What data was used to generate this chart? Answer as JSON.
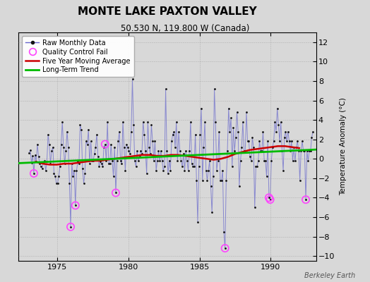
{
  "title": "MONTE LAKE PAXTON VALLEY",
  "subtitle": "50.530 N, 119.800 W (Canada)",
  "ylabel": "Temperature Anomaly (°C)",
  "credit": "Berkeley Earth",
  "xlim": [
    1972.3,
    1993.2
  ],
  "ylim": [
    -10.5,
    13.0
  ],
  "yticks": [
    -10,
    -8,
    -6,
    -4,
    -2,
    0,
    2,
    4,
    6,
    8,
    10,
    12
  ],
  "xticks": [
    1975,
    1980,
    1985,
    1990
  ],
  "bg_color": "#d8d8d8",
  "plot_bg_color": "#d8d8d8",
  "line_color": "#6666cc",
  "dot_color": "#111111",
  "ma_color": "#cc0000",
  "trend_color": "#00bb00",
  "qc_color": "#ff44ff",
  "raw_monthly": [
    [
      1973.042,
      0.6
    ],
    [
      1973.125,
      0.9
    ],
    [
      1973.208,
      -0.4
    ],
    [
      1973.292,
      0.3
    ],
    [
      1973.375,
      -1.5
    ],
    [
      1973.458,
      0.4
    ],
    [
      1973.542,
      -0.3
    ],
    [
      1973.625,
      1.5
    ],
    [
      1973.708,
      0.2
    ],
    [
      1973.792,
      -0.5
    ],
    [
      1973.875,
      -0.8
    ],
    [
      1973.958,
      -1.0
    ],
    [
      1974.042,
      -0.4
    ],
    [
      1974.125,
      -0.2
    ],
    [
      1974.208,
      -1.2
    ],
    [
      1974.292,
      -0.3
    ],
    [
      1974.375,
      2.5
    ],
    [
      1974.458,
      1.5
    ],
    [
      1974.542,
      -0.5
    ],
    [
      1974.625,
      0.8
    ],
    [
      1974.708,
      1.2
    ],
    [
      1974.792,
      -1.5
    ],
    [
      1974.875,
      -1.8
    ],
    [
      1974.958,
      -2.5
    ],
    [
      1975.042,
      -2.5
    ],
    [
      1975.125,
      -1.8
    ],
    [
      1975.208,
      -0.8
    ],
    [
      1975.292,
      1.5
    ],
    [
      1975.375,
      3.8
    ],
    [
      1975.458,
      1.2
    ],
    [
      1975.542,
      -0.5
    ],
    [
      1975.625,
      0.8
    ],
    [
      1975.708,
      2.8
    ],
    [
      1975.792,
      1.2
    ],
    [
      1975.875,
      -2.5
    ],
    [
      1975.958,
      -7.0
    ],
    [
      1976.042,
      -0.5
    ],
    [
      1976.125,
      -1.8
    ],
    [
      1976.208,
      -1.2
    ],
    [
      1976.292,
      -4.8
    ],
    [
      1976.375,
      -1.2
    ],
    [
      1976.458,
      -0.3
    ],
    [
      1976.542,
      -0.5
    ],
    [
      1976.625,
      3.5
    ],
    [
      1976.708,
      3.0
    ],
    [
      1976.792,
      -1.0
    ],
    [
      1976.875,
      -2.5
    ],
    [
      1976.958,
      -1.5
    ],
    [
      1977.042,
      1.8
    ],
    [
      1977.125,
      1.5
    ],
    [
      1977.208,
      3.0
    ],
    [
      1977.292,
      -0.5
    ],
    [
      1977.375,
      1.8
    ],
    [
      1977.458,
      -0.2
    ],
    [
      1977.542,
      -0.2
    ],
    [
      1977.625,
      0.5
    ],
    [
      1977.708,
      1.2
    ],
    [
      1977.792,
      2.5
    ],
    [
      1977.875,
      0.2
    ],
    [
      1977.958,
      -0.8
    ],
    [
      1978.042,
      -0.3
    ],
    [
      1978.125,
      -0.5
    ],
    [
      1978.208,
      -0.8
    ],
    [
      1978.292,
      1.2
    ],
    [
      1978.375,
      1.5
    ],
    [
      1978.458,
      -0.2
    ],
    [
      1978.542,
      3.8
    ],
    [
      1978.625,
      -0.5
    ],
    [
      1978.708,
      -0.5
    ],
    [
      1978.792,
      1.5
    ],
    [
      1978.875,
      -0.2
    ],
    [
      1978.958,
      -1.8
    ],
    [
      1979.042,
      1.2
    ],
    [
      1979.125,
      -3.5
    ],
    [
      1979.208,
      -0.2
    ],
    [
      1979.292,
      1.8
    ],
    [
      1979.375,
      2.8
    ],
    [
      1979.458,
      -0.2
    ],
    [
      1979.542,
      -0.5
    ],
    [
      1979.625,
      3.8
    ],
    [
      1979.708,
      1.2
    ],
    [
      1979.792,
      -1.2
    ],
    [
      1979.875,
      1.5
    ],
    [
      1979.958,
      1.2
    ],
    [
      1980.042,
      0.8
    ],
    [
      1980.125,
      0.5
    ],
    [
      1980.208,
      2.8
    ],
    [
      1980.292,
      8.2
    ],
    [
      1980.375,
      3.5
    ],
    [
      1980.458,
      -0.2
    ],
    [
      1980.542,
      -0.8
    ],
    [
      1980.625,
      0.8
    ],
    [
      1980.708,
      -0.2
    ],
    [
      1980.792,
      0.2
    ],
    [
      1980.875,
      0.8
    ],
    [
      1980.958,
      0.5
    ],
    [
      1981.042,
      3.8
    ],
    [
      1981.125,
      2.5
    ],
    [
      1981.208,
      0.8
    ],
    [
      1981.292,
      -1.5
    ],
    [
      1981.375,
      3.8
    ],
    [
      1981.458,
      1.2
    ],
    [
      1981.542,
      0.5
    ],
    [
      1981.625,
      3.5
    ],
    [
      1981.708,
      1.8
    ],
    [
      1981.792,
      -0.2
    ],
    [
      1981.875,
      1.8
    ],
    [
      1981.958,
      -1.2
    ],
    [
      1982.042,
      -0.2
    ],
    [
      1982.125,
      0.8
    ],
    [
      1982.208,
      -0.2
    ],
    [
      1982.292,
      0.8
    ],
    [
      1982.375,
      -0.2
    ],
    [
      1982.458,
      -1.2
    ],
    [
      1982.542,
      -0.8
    ],
    [
      1982.625,
      7.2
    ],
    [
      1982.708,
      0.8
    ],
    [
      1982.792,
      -1.5
    ],
    [
      1982.875,
      -0.2
    ],
    [
      1982.958,
      -1.2
    ],
    [
      1983.042,
      1.8
    ],
    [
      1983.125,
      2.5
    ],
    [
      1983.208,
      2.8
    ],
    [
      1983.292,
      1.2
    ],
    [
      1983.375,
      3.8
    ],
    [
      1983.458,
      -0.2
    ],
    [
      1983.542,
      2.8
    ],
    [
      1983.625,
      0.8
    ],
    [
      1983.708,
      -0.2
    ],
    [
      1983.792,
      -0.8
    ],
    [
      1983.875,
      0.5
    ],
    [
      1983.958,
      -1.2
    ],
    [
      1984.042,
      0.8
    ],
    [
      1984.125,
      -0.2
    ],
    [
      1984.208,
      -1.2
    ],
    [
      1984.292,
      0.8
    ],
    [
      1984.375,
      3.8
    ],
    [
      1984.458,
      -0.5
    ],
    [
      1984.542,
      -0.8
    ],
    [
      1984.625,
      -0.8
    ],
    [
      1984.708,
      2.5
    ],
    [
      1984.792,
      -2.2
    ],
    [
      1984.875,
      -6.5
    ],
    [
      1984.958,
      -0.8
    ],
    [
      1985.042,
      2.5
    ],
    [
      1985.125,
      5.2
    ],
    [
      1985.208,
      -2.2
    ],
    [
      1985.292,
      1.2
    ],
    [
      1985.375,
      3.8
    ],
    [
      1985.458,
      -1.2
    ],
    [
      1985.542,
      -2.2
    ],
    [
      1985.625,
      -1.2
    ],
    [
      1985.708,
      -0.2
    ],
    [
      1985.792,
      -2.8
    ],
    [
      1985.875,
      -5.5
    ],
    [
      1985.958,
      -1.8
    ],
    [
      1986.042,
      7.2
    ],
    [
      1986.125,
      3.8
    ],
    [
      1986.208,
      -1.2
    ],
    [
      1986.292,
      -0.2
    ],
    [
      1986.375,
      2.8
    ],
    [
      1986.458,
      -2.2
    ],
    [
      1986.542,
      -2.2
    ],
    [
      1986.625,
      -1.2
    ],
    [
      1986.708,
      -7.5
    ],
    [
      1986.792,
      -9.2
    ],
    [
      1986.875,
      -2.2
    ],
    [
      1986.958,
      0.8
    ],
    [
      1987.042,
      5.2
    ],
    [
      1987.125,
      2.8
    ],
    [
      1987.208,
      4.2
    ],
    [
      1987.292,
      -0.8
    ],
    [
      1987.375,
      3.2
    ],
    [
      1987.458,
      0.8
    ],
    [
      1987.542,
      2.2
    ],
    [
      1987.625,
      4.8
    ],
    [
      1987.708,
      2.8
    ],
    [
      1987.792,
      -2.8
    ],
    [
      1987.875,
      -0.2
    ],
    [
      1987.958,
      1.2
    ],
    [
      1988.042,
      3.8
    ],
    [
      1988.125,
      0.8
    ],
    [
      1988.208,
      0.8
    ],
    [
      1988.292,
      4.8
    ],
    [
      1988.375,
      1.8
    ],
    [
      1988.458,
      1.8
    ],
    [
      1988.542,
      0.2
    ],
    [
      1988.625,
      -0.2
    ],
    [
      1988.708,
      2.2
    ],
    [
      1988.792,
      1.2
    ],
    [
      1988.875,
      -5.0
    ],
    [
      1988.958,
      -0.8
    ],
    [
      1989.042,
      -0.8
    ],
    [
      1989.125,
      -0.2
    ],
    [
      1989.208,
      1.8
    ],
    [
      1989.292,
      0.8
    ],
    [
      1989.375,
      0.8
    ],
    [
      1989.458,
      2.8
    ],
    [
      1989.542,
      -0.2
    ],
    [
      1989.625,
      -0.2
    ],
    [
      1989.708,
      -1.8
    ],
    [
      1989.792,
      1.8
    ],
    [
      1989.875,
      -4.0
    ],
    [
      1989.958,
      -4.2
    ],
    [
      1990.042,
      -0.2
    ],
    [
      1990.125,
      1.2
    ],
    [
      1990.208,
      1.8
    ],
    [
      1990.292,
      3.8
    ],
    [
      1990.375,
      2.8
    ],
    [
      1990.458,
      5.2
    ],
    [
      1990.542,
      3.5
    ],
    [
      1990.625,
      1.8
    ],
    [
      1990.708,
      3.8
    ],
    [
      1990.792,
      0.8
    ],
    [
      1990.875,
      -1.2
    ],
    [
      1990.958,
      2.2
    ],
    [
      1991.042,
      2.8
    ],
    [
      1991.125,
      1.8
    ],
    [
      1991.208,
      2.8
    ],
    [
      1991.292,
      1.8
    ],
    [
      1991.375,
      0.8
    ],
    [
      1991.458,
      1.8
    ],
    [
      1991.542,
      -0.2
    ],
    [
      1991.625,
      1.2
    ],
    [
      1991.708,
      -0.2
    ],
    [
      1991.792,
      1.2
    ],
    [
      1991.875,
      1.8
    ],
    [
      1991.958,
      0.8
    ],
    [
      1992.042,
      -2.2
    ],
    [
      1992.125,
      0.8
    ],
    [
      1992.208,
      1.8
    ],
    [
      1992.292,
      0.8
    ],
    [
      1992.375,
      0.8
    ],
    [
      1992.458,
      -4.2
    ],
    [
      1992.542,
      0.8
    ],
    [
      1992.625,
      -0.2
    ],
    [
      1992.708,
      0.8
    ],
    [
      1992.792,
      0.8
    ],
    [
      1992.875,
      2.2
    ],
    [
      1992.958,
      2.8
    ]
  ],
  "qc_fails": [
    [
      1973.375,
      -1.5
    ],
    [
      1975.958,
      -7.0
    ],
    [
      1976.292,
      -4.8
    ],
    [
      1978.375,
      1.5
    ],
    [
      1979.125,
      -3.5
    ],
    [
      1986.792,
      -9.2
    ],
    [
      1989.875,
      -4.0
    ],
    [
      1989.958,
      -4.2
    ],
    [
      1992.458,
      -4.2
    ]
  ],
  "moving_avg_x": [
    1973.5,
    1974.0,
    1974.5,
    1975.0,
    1975.5,
    1976.0,
    1976.5,
    1977.0,
    1977.5,
    1978.0,
    1978.5,
    1979.0,
    1979.5,
    1980.0,
    1980.5,
    1981.0,
    1981.5,
    1982.0,
    1982.5,
    1983.0,
    1983.5,
    1984.0,
    1984.5,
    1985.0,
    1985.5,
    1986.0,
    1986.5,
    1987.0,
    1987.5,
    1988.0,
    1988.5,
    1989.0,
    1989.5,
    1990.0,
    1990.5,
    1991.0,
    1991.5,
    1992.0
  ],
  "moving_avg_y": [
    -0.3,
    -0.5,
    -0.6,
    -0.6,
    -0.5,
    -0.5,
    -0.4,
    -0.3,
    -0.2,
    -0.2,
    -0.1,
    0.0,
    0.1,
    0.2,
    0.3,
    0.4,
    0.4,
    0.3,
    0.3,
    0.4,
    0.4,
    0.3,
    0.2,
    0.1,
    0.0,
    -0.1,
    0.0,
    0.2,
    0.5,
    0.7,
    0.9,
    1.0,
    1.1,
    1.2,
    1.3,
    1.3,
    1.2,
    1.1
  ],
  "trend_x": [
    1972.3,
    1993.2
  ],
  "trend_y": [
    -0.45,
    0.95
  ]
}
